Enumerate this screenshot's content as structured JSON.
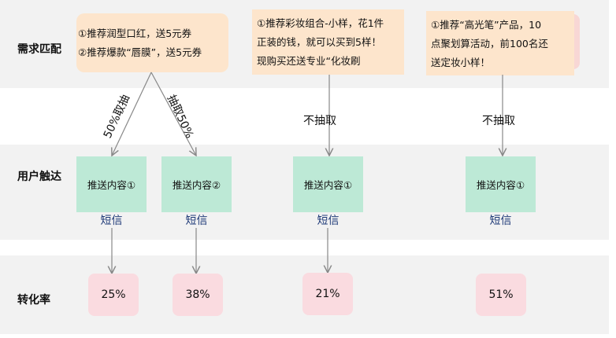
{
  "rows": {
    "demand": "需求匹配",
    "reach": "用户触达",
    "conversion": "转化率"
  },
  "notes": [
    {
      "lines": [
        "①推荐润型口红，送5元券",
        "②推荐爆款“唇膜”，送5元券"
      ]
    },
    {
      "lines": [
        "①推荐彩妆组合-小样，花1件",
        "正装的钱，就可以买到5样！",
        "现购买还送专业“化妆刷"
      ]
    },
    {
      "lines": [
        "①推荐“高光笔”产品，10",
        "点聚划算活动，前100名还",
        "送定妆小样！"
      ]
    }
  ],
  "splits": {
    "left": "50%取抽",
    "right": "抽取50%",
    "none1": "不抽取",
    "none2": "不抽取"
  },
  "pushes": [
    {
      "content": "推送内容①",
      "channel": "短信",
      "rate": "25%"
    },
    {
      "content": "推送内容②",
      "channel": "短信",
      "rate": "38%"
    },
    {
      "content": "推送内容①",
      "channel": "短信",
      "rate": "21%"
    },
    {
      "content": "推送内容①",
      "channel": "短信",
      "rate": "51%"
    }
  ]
}
